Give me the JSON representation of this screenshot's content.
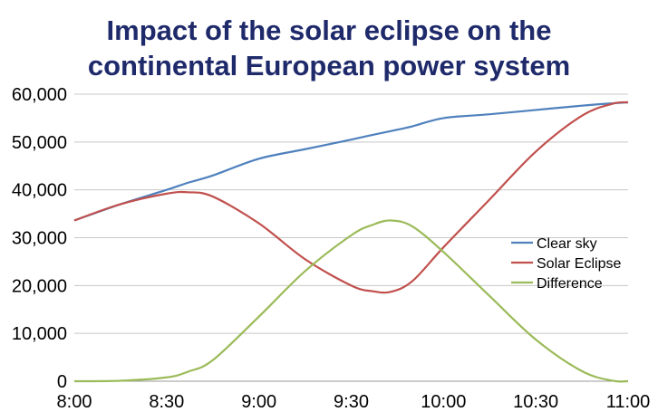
{
  "title_lines": [
    "Impact of the solar eclipse on the",
    "continental European power system"
  ],
  "chart_data": {
    "type": "line",
    "title": "Impact of the solar eclipse on the continental European power system",
    "xlabel": "",
    "ylabel": "",
    "xlim": [
      "8:00",
      "11:00"
    ],
    "ylim": [
      0,
      60000
    ],
    "x_tick_labels": [
      "8:00",
      "8:30",
      "9:00",
      "9:30",
      "10:00",
      "10:30",
      "11:00"
    ],
    "y_tick_labels": [
      "0",
      "10,000",
      "20,000",
      "30,000",
      "40,000",
      "50,000",
      "60,000"
    ],
    "y_ticks": [
      0,
      10000,
      20000,
      30000,
      40000,
      50000,
      60000
    ],
    "grid": "horizontal",
    "legend_position": "right",
    "x": [
      "8:00",
      "8:15",
      "8:30",
      "8:37",
      "8:45",
      "9:00",
      "9:15",
      "9:30",
      "9:37",
      "9:43",
      "9:50",
      "10:00",
      "10:15",
      "10:30",
      "10:45",
      "10:55",
      "11:00"
    ],
    "series": [
      {
        "name": "Clear sky",
        "color": "#4f81bd",
        "values": [
          33600,
          37000,
          40000,
          41500,
          43000,
          46500,
          48500,
          50500,
          51500,
          52300,
          53300,
          55000,
          55800,
          56700,
          57600,
          58100,
          58300
        ]
      },
      {
        "name": "Solar Eclipse",
        "color": "#c0504d",
        "values": [
          33600,
          37000,
          39200,
          39500,
          38600,
          33000,
          25500,
          20000,
          18800,
          18700,
          21000,
          28000,
          38000,
          48000,
          55500,
          58000,
          58300
        ]
      },
      {
        "name": "Difference",
        "color": "#9bbb59",
        "values": [
          0,
          100,
          800,
          2000,
          4400,
          13500,
          23000,
          30500,
          32700,
          33600,
          32300,
          27000,
          17800,
          8700,
          2100,
          100,
          0
        ]
      }
    ]
  }
}
